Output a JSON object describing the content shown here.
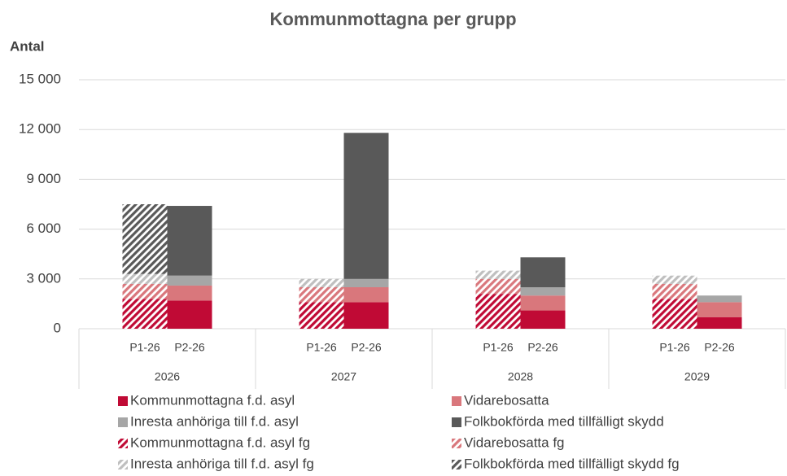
{
  "chart_data": {
    "type": "stacked_bar",
    "title": "Kommunmottagna per grupp",
    "y_label": "Antal",
    "categories": [
      "P1-26",
      "P2-26",
      "P1-26",
      "P2-26",
      "P1-26",
      "P2-26",
      "P1-26",
      "P2-26"
    ],
    "groups": [
      "2026",
      "2027",
      "2028",
      "2029"
    ],
    "ylim": [
      0,
      15000
    ],
    "yticks": [
      0,
      {
        "value": 3000,
        "label": "3 000"
      },
      {
        "value": 6000,
        "label": "6 000"
      },
      {
        "value": 9000,
        "label": "9 000"
      },
      {
        "value": 12000,
        "label": "12 000"
      },
      {
        "value": 15000,
        "label": "15 000"
      }
    ],
    "grid": true,
    "series": [
      {
        "name": "Kommunmottagna f.d. asyl",
        "color": "#c00a35",
        "hatch": false,
        "values": [
          null,
          1700,
          null,
          1600,
          null,
          1100,
          null,
          700
        ]
      },
      {
        "name": "Vidarebosatta",
        "color": "#d9777c",
        "hatch": false,
        "values": [
          null,
          900,
          null,
          900,
          null,
          900,
          null,
          900
        ]
      },
      {
        "name": "Inresta anhöriga till f.d. asyl",
        "color": "#a6a6a6",
        "hatch": false,
        "values": [
          null,
          600,
          null,
          500,
          null,
          500,
          null,
          400
        ]
      },
      {
        "name": "Folkbokförda med tillfälligt skydd",
        "color": "#595959",
        "hatch": false,
        "values": [
          null,
          4200,
          null,
          8800,
          null,
          1800,
          null,
          null
        ]
      },
      {
        "name": "Kommunmottagna f.d. asyl fg",
        "color": "#c00a35",
        "hatch": true,
        "values": [
          1800,
          null,
          1600,
          null,
          2100,
          null,
          1800,
          null
        ]
      },
      {
        "name": "Vidarebosatta fg",
        "color": "#d9777c",
        "hatch": true,
        "values": [
          900,
          null,
          900,
          null,
          900,
          null,
          900,
          null
        ]
      },
      {
        "name": "Inresta anhöriga till f.d. asyl fg",
        "color": "#bfbfbf",
        "hatch": true,
        "values": [
          600,
          null,
          500,
          null,
          500,
          null,
          500,
          null
        ]
      },
      {
        "name": "Folkbokförda med tillfälligt skydd fg",
        "color": "#595959",
        "hatch": true,
        "values": [
          4200,
          null,
          0,
          null,
          0,
          null,
          0,
          null
        ]
      }
    ]
  }
}
